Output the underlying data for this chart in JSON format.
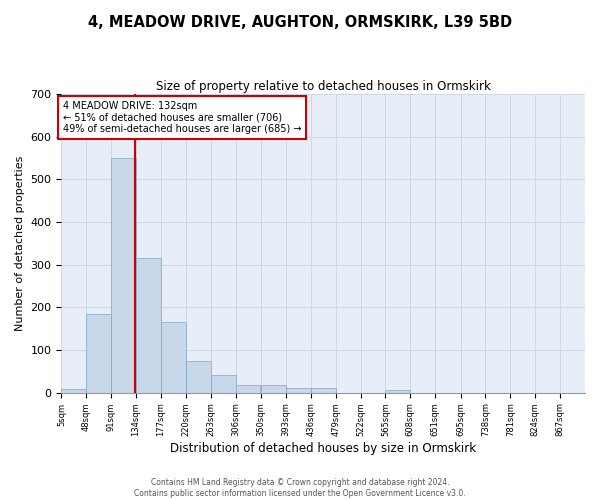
{
  "title": "4, MEADOW DRIVE, AUGHTON, ORMSKIRK, L39 5BD",
  "subtitle": "Size of property relative to detached houses in Ormskirk",
  "xlabel": "Distribution of detached houses by size in Ormskirk",
  "ylabel": "Number of detached properties",
  "bar_color": "#c8d8ea",
  "bar_edge_color": "#7aaac8",
  "grid_color": "#ccd8e8",
  "background_color": "#e8eef8",
  "bins": [
    5,
    48,
    91,
    134,
    177,
    220,
    263,
    306,
    350,
    393,
    436,
    479,
    522,
    565,
    608,
    651,
    695,
    738,
    781,
    824,
    867,
    910
  ],
  "counts": [
    8,
    185,
    550,
    315,
    165,
    75,
    42,
    18,
    18,
    12,
    12,
    0,
    0,
    7,
    0,
    0,
    0,
    0,
    0,
    0,
    0
  ],
  "property_size": 132,
  "vline_color": "#cc0000",
  "annotation_lines": [
    "4 MEADOW DRIVE: 132sqm",
    "← 51% of detached houses are smaller (706)",
    "49% of semi-detached houses are larger (685) →"
  ],
  "annotation_box_color": "#cc0000",
  "ylim": [
    0,
    700
  ],
  "yticks": [
    0,
    100,
    200,
    300,
    400,
    500,
    600,
    700
  ],
  "footnote": "Contains HM Land Registry data © Crown copyright and database right 2024.\nContains public sector information licensed under the Open Government Licence v3.0.",
  "tick_labels": [
    "5sqm",
    "48sqm",
    "91sqm",
    "134sqm",
    "177sqm",
    "220sqm",
    "263sqm",
    "306sqm",
    "350sqm",
    "393sqm",
    "436sqm",
    "479sqm",
    "522sqm",
    "565sqm",
    "608sqm",
    "651sqm",
    "695sqm",
    "738sqm",
    "781sqm",
    "824sqm",
    "867sqm"
  ]
}
